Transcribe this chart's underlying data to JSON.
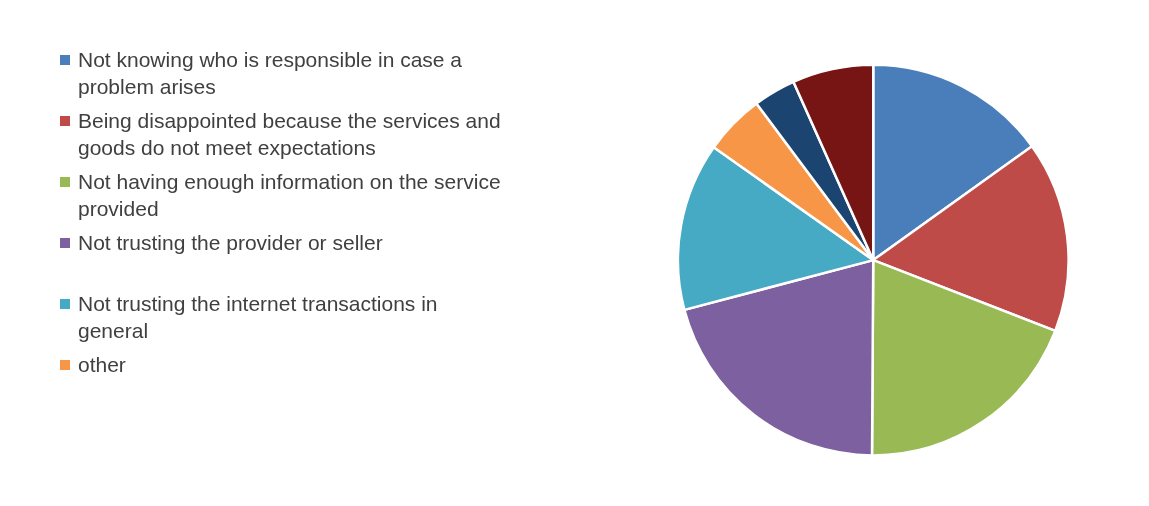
{
  "chart_data": {
    "type": "pie",
    "categories": [
      "Not knowing who is responsible in case a problem arises",
      "Being disappointed because the services and goods do not meet expectations",
      "Not having enough information on the service provided",
      "Not trusting the provider or seller",
      "Not trusting the internet transactions in general",
      "other",
      null,
      null
    ],
    "values": [
      15.1,
      15.8,
      19.2,
      20.8,
      13.9,
      5.0,
      3.5,
      6.7
    ],
    "colors": [
      "#4a7ebb",
      "#be4b48",
      "#98b954",
      "#7d60a0",
      "#46aac5",
      "#f79646",
      "#1b4470",
      "#771414"
    ],
    "legend": "left"
  }
}
